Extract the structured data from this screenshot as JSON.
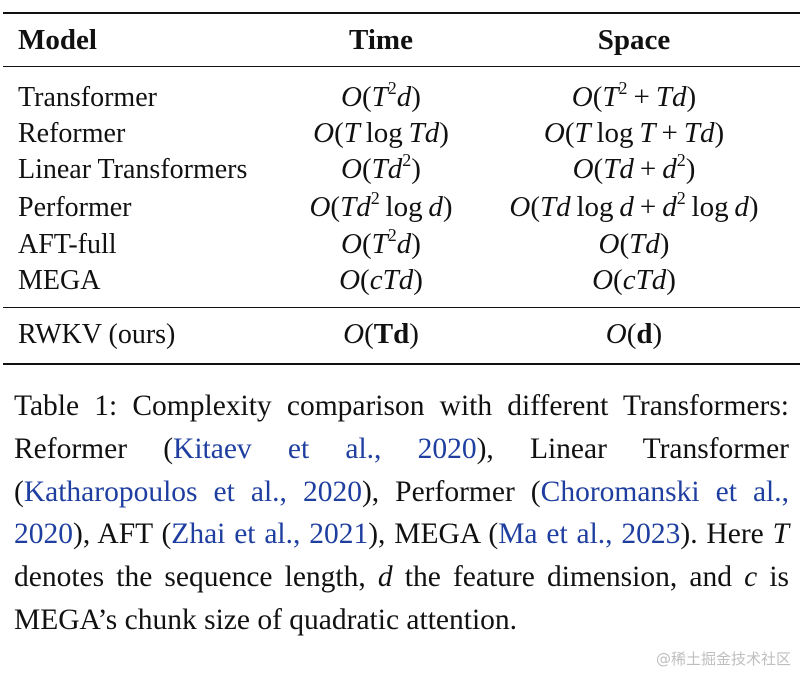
{
  "table": {
    "headers": {
      "model": "Model",
      "time": "Time",
      "space": "Space"
    },
    "rows": [
      {
        "model": "Transformer"
      },
      {
        "model": "Reformer"
      },
      {
        "model": "Linear Transformers"
      },
      {
        "model": "Performer"
      },
      {
        "model": "AFT-full"
      },
      {
        "model": "MEGA"
      }
    ],
    "ours": {
      "model": "RWKV (ours)"
    }
  },
  "caption": {
    "prefix": "Table 1: Complexity comparison with different Transformers: Reformer (",
    "c1": "Kitaev et al., 2020",
    "t1": "), Linear Transformer (",
    "c2": "Katharopoulos et al., 2020",
    "t2": "), Performer (",
    "c3": "Choromanski et al., 2020",
    "t3": "), AFT (",
    "c4": "Zhai et al., 2021",
    "t4": "), MEGA (",
    "c5": "Ma et al., 2023",
    "t5": "). Here ",
    "var_t": "T",
    "t6": " denotes the sequence length, ",
    "var_d": "d",
    "t7": " the feature dimension, and ",
    "var_c": "c",
    "t8": " is MEGA’s chunk size of quadratic attention."
  },
  "watermark": "@稀土掘金技术社区"
}
